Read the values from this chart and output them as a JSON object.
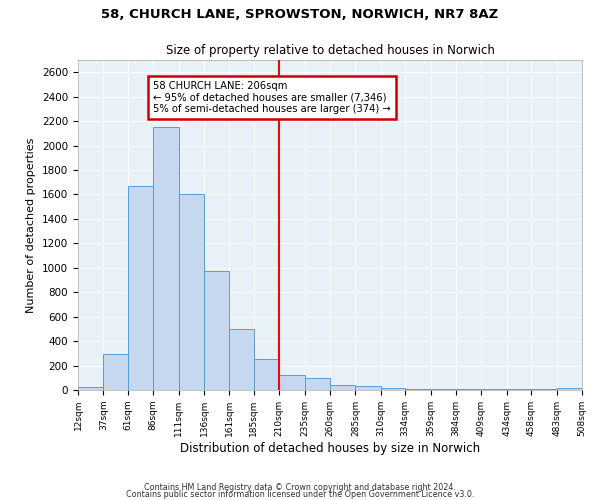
{
  "title1": "58, CHURCH LANE, SPROWSTON, NORWICH, NR7 8AZ",
  "title2": "Size of property relative to detached houses in Norwich",
  "xlabel": "Distribution of detached houses by size in Norwich",
  "ylabel": "Number of detached properties",
  "bar_color": "#c5d8f0",
  "bar_edge_color": "#5b9bd5",
  "background_color": "#e8f0f8",
  "grid_color": "#ffffff",
  "annotation_text": "58 CHURCH LANE: 206sqm\n← 95% of detached houses are smaller (7,346)\n5% of semi-detached houses are larger (374) →",
  "annotation_box_color": "#ffffff",
  "annotation_box_edge": "#cc0000",
  "footnote1": "Contains HM Land Registry data © Crown copyright and database right 2024.",
  "footnote2": "Contains public sector information licensed under the Open Government Licence v3.0.",
  "bin_edges": [
    12,
    37,
    61,
    86,
    111,
    136,
    161,
    185,
    210,
    235,
    260,
    285,
    310,
    334,
    359,
    384,
    409,
    434,
    458,
    483,
    508
  ],
  "bar_heights": [
    25,
    295,
    1670,
    2150,
    1600,
    970,
    500,
    255,
    120,
    95,
    40,
    30,
    15,
    10,
    10,
    10,
    10,
    10,
    5,
    15
  ],
  "ylim": [
    0,
    2700
  ],
  "yticks": [
    0,
    200,
    400,
    600,
    800,
    1000,
    1200,
    1400,
    1600,
    1800,
    2000,
    2200,
    2400,
    2600
  ]
}
